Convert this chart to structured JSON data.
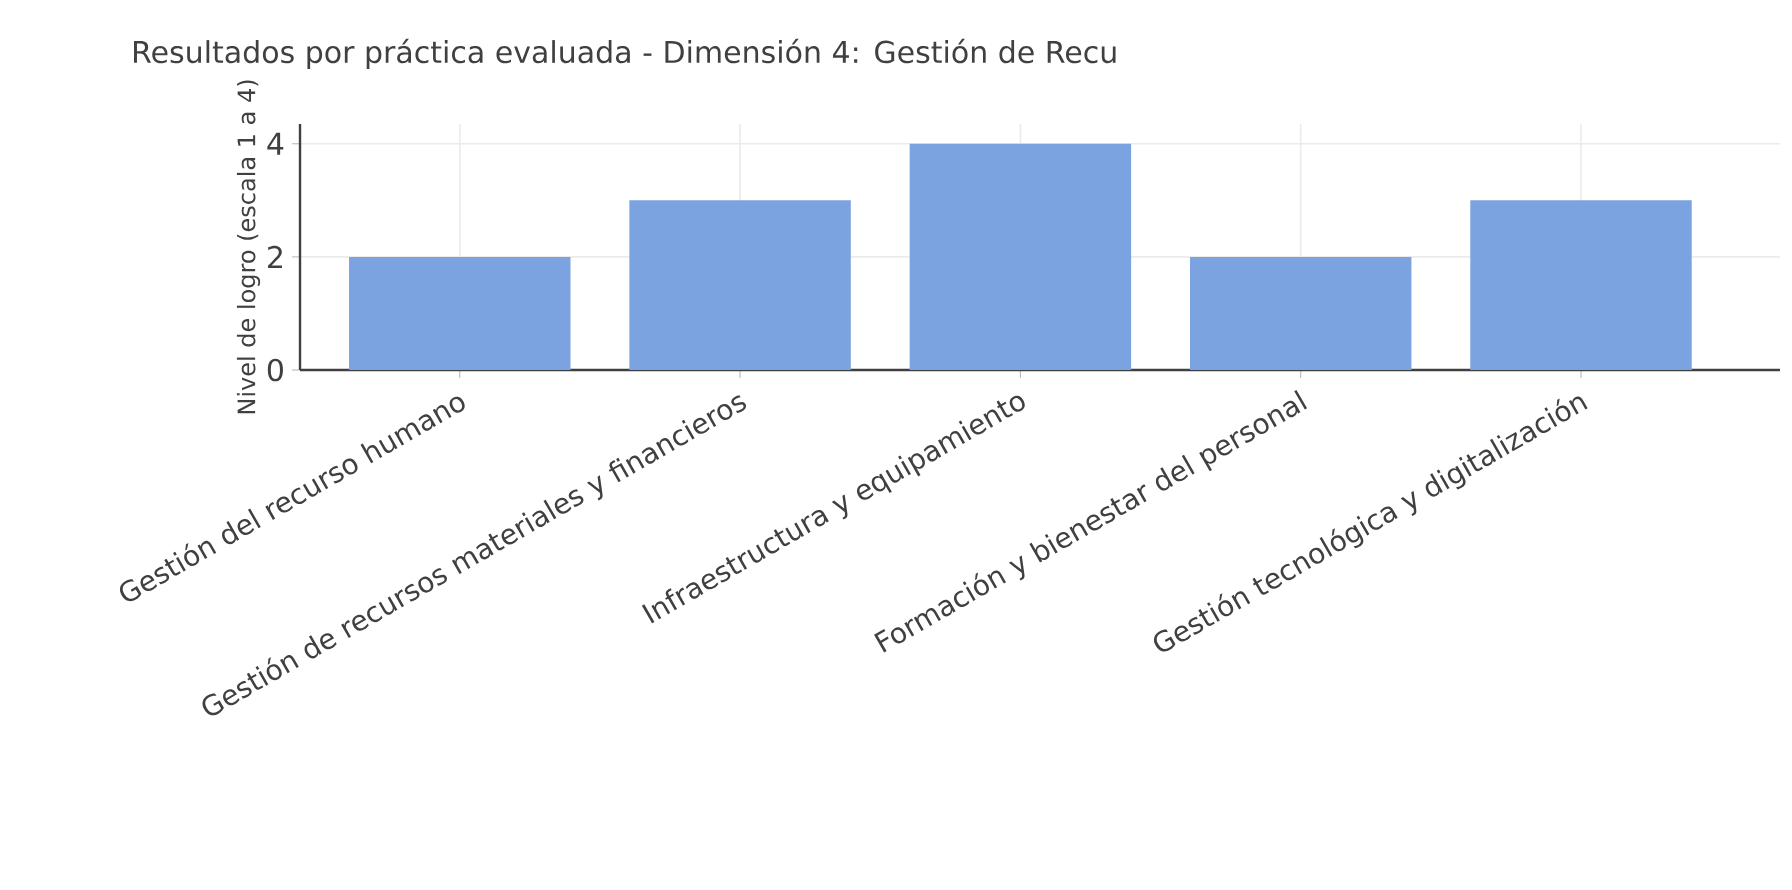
{
  "chart_data": {
    "type": "bar",
    "title": "Resultados por práctica evaluada - Dimensión 4: Gestión de Recu",
    "ylabel": "Nivel de logro (escala 1 a 4)",
    "categories": [
      "Gestión del recurso humano",
      "Gestión de recursos materiales y financieros",
      "Infraestructura y equipamiento",
      "Formación y bienestar del personal",
      "Gestión tecnológica y digitalización"
    ],
    "values": [
      2,
      3,
      4,
      2,
      3
    ],
    "color": "#7aa3df",
    "ylim": [
      0,
      4.35
    ],
    "yticks": [
      0,
      2,
      4
    ],
    "grid": true
  }
}
